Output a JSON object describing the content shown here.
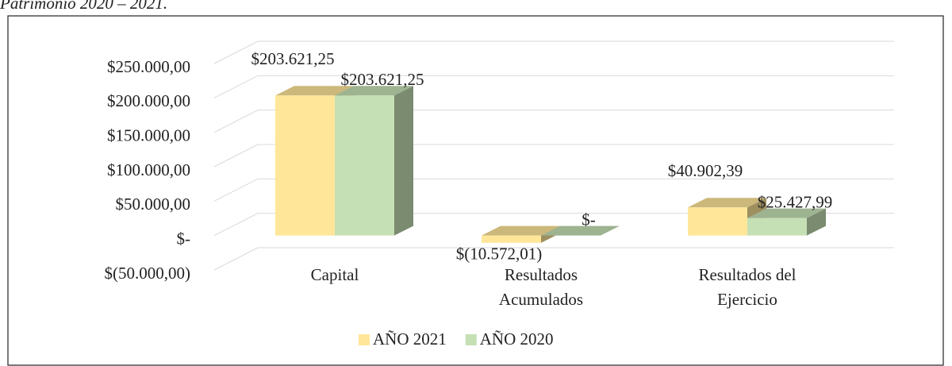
{
  "chart_data": {
    "type": "bar3d",
    "title": "Patrimonio 2020 – 2021.",
    "categories": [
      "Capital",
      "Resultados Acumulados",
      "Resultados del Ejercicio"
    ],
    "series": [
      {
        "name": "AÑO 2021",
        "color": "#ffe699",
        "values": [
          203621.25,
          -10572.01,
          40902.39
        ],
        "value_labels": [
          "$203.621,25",
          "$(10.572,01)",
          "$40.902,39"
        ]
      },
      {
        "name": "AÑO 2020",
        "color": "#c5e0b4",
        "values": [
          203621.25,
          0,
          25427.99
        ],
        "value_labels": [
          "$203.621,25",
          "$-",
          "$25.427,99"
        ]
      }
    ],
    "ylim": [
      -50000,
      250000
    ],
    "yticks": [
      {
        "value": -50000,
        "label": "$(50.000,00)"
      },
      {
        "value": 0,
        "label": "$-"
      },
      {
        "value": 50000,
        "label": "$50.000,00"
      },
      {
        "value": 100000,
        "label": "$100.000,00"
      },
      {
        "value": 150000,
        "label": "$150.000,00"
      },
      {
        "value": 200000,
        "label": "$200.000,00"
      },
      {
        "value": 250000,
        "label": "$250.000,00"
      }
    ],
    "grid": true,
    "legend": "bottom"
  }
}
